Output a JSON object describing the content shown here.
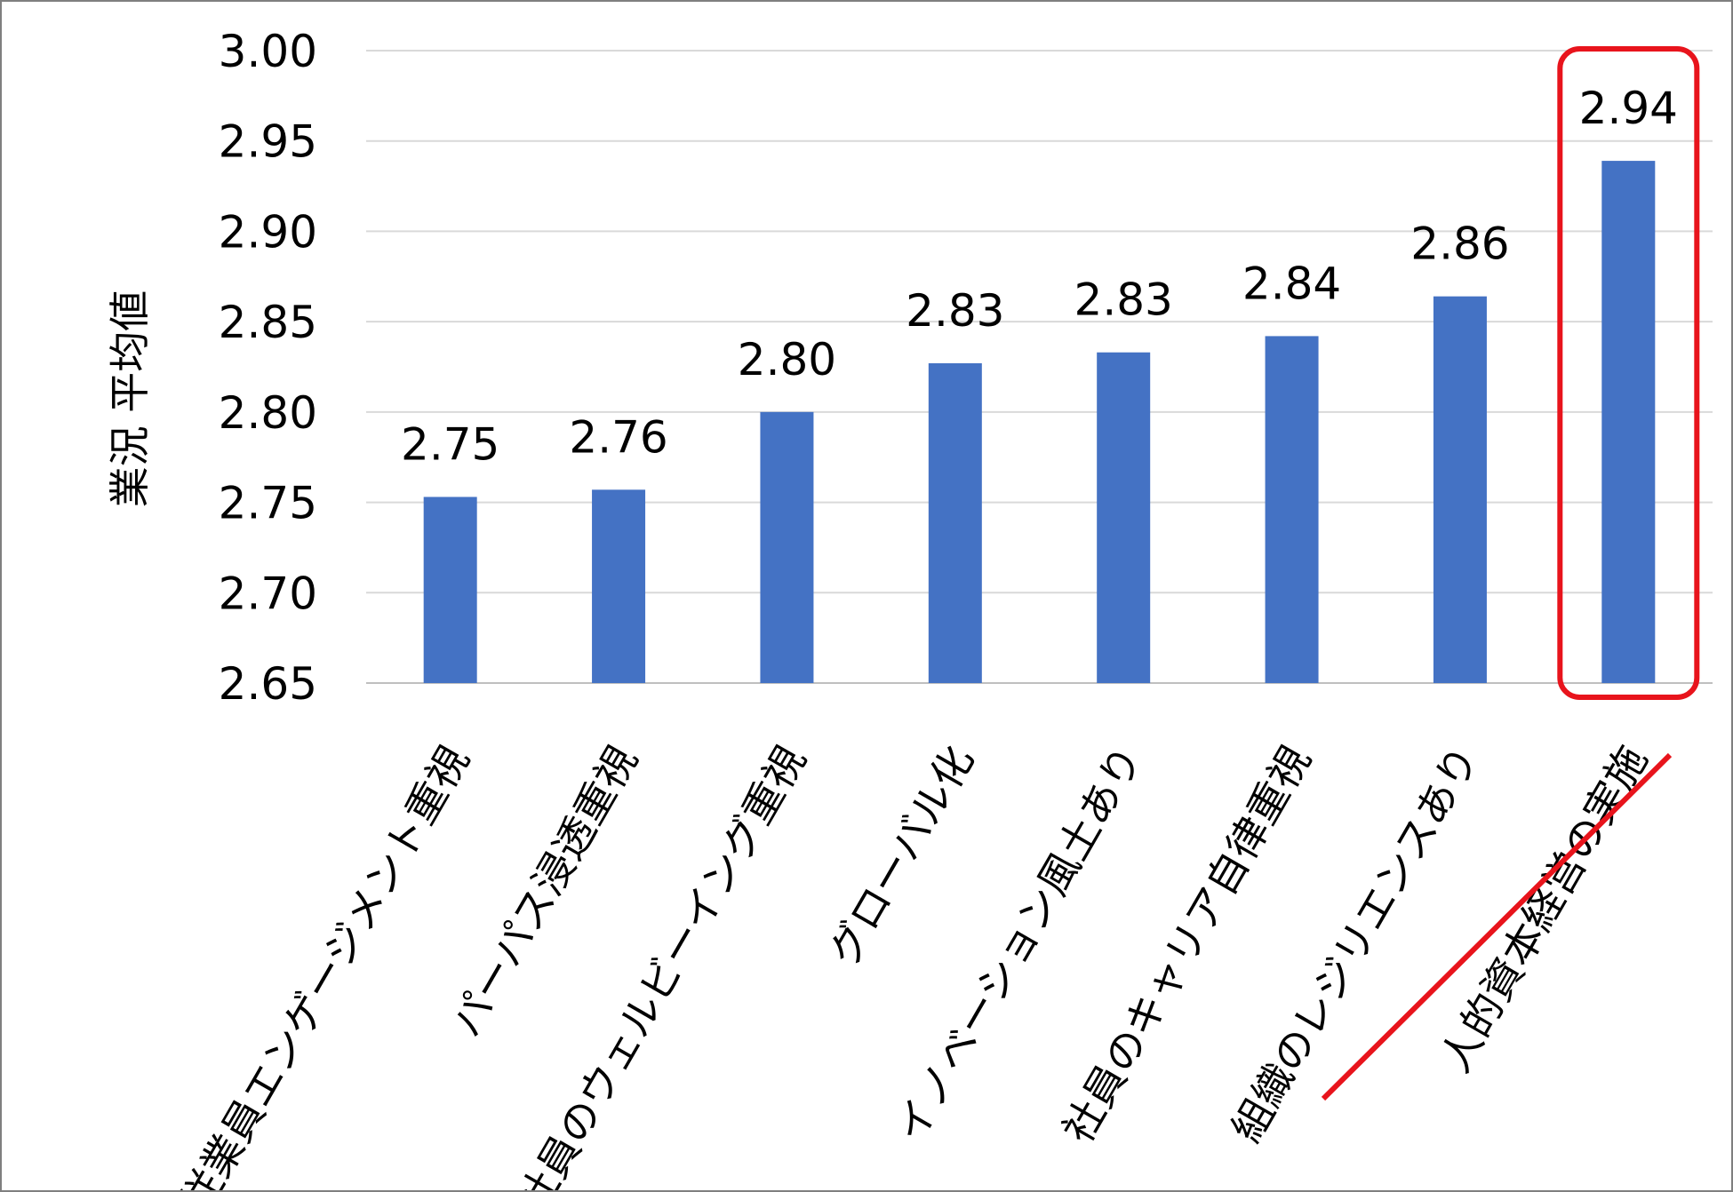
{
  "chart_data": {
    "type": "bar",
    "title": "",
    "xlabel": "",
    "ylabel": "業況 平均値",
    "ylim": [
      2.65,
      3.0
    ],
    "yticks": [
      2.65,
      2.7,
      2.75,
      2.8,
      2.85,
      2.9,
      2.95,
      3.0
    ],
    "ytick_labels": [
      "2.65",
      "2.70",
      "2.75",
      "2.80",
      "2.85",
      "2.90",
      "2.95",
      "3.00"
    ],
    "categories": [
      "従業員エンゲージメント重視",
      "パーパス浸透重視",
      "社員のウェルビーイング重視",
      "グローバル化",
      "イノベーション風土あり",
      "社員のキャリア自律重視",
      "組織のレジリエンスあり",
      "人的資本経営の実施"
    ],
    "values": [
      2.753,
      2.757,
      2.8,
      2.827,
      2.833,
      2.842,
      2.864,
      2.939
    ],
    "value_labels": [
      "2.75",
      "2.76",
      "2.80",
      "2.83",
      "2.83",
      "2.84",
      "2.86",
      "2.94"
    ],
    "grid": true,
    "legend": "none",
    "bar_color": "#4472c4",
    "highlight": {
      "category_index": 7,
      "box_color": "#e8141c",
      "underline_color": "#e8141c"
    }
  }
}
